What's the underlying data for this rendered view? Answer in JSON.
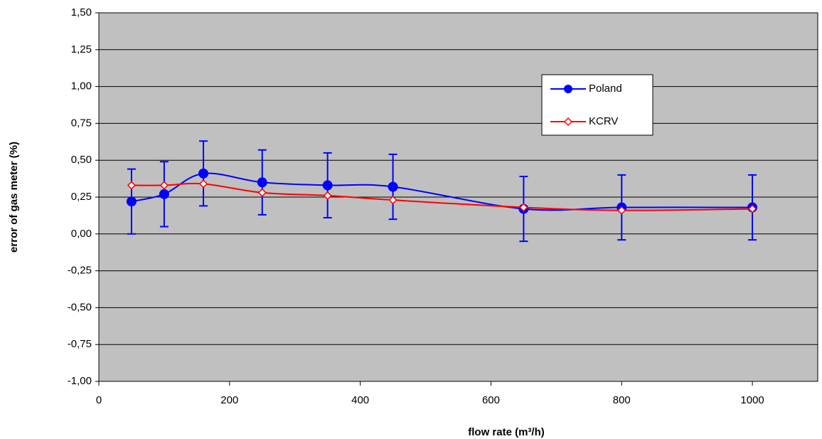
{
  "chart_data": {
    "type": "line",
    "x_label": "flow rate (m³/h)",
    "y_label": "error of gas meter (%)",
    "xlim": [
      0,
      1100
    ],
    "xticks": [
      0,
      200,
      400,
      600,
      800,
      1000
    ],
    "ylim": [
      -1,
      1.5
    ],
    "yticks": [
      {
        "value": -1,
        "label": "-1,00"
      },
      {
        "value": -0.75,
        "label": "-0,75"
      },
      {
        "value": -0.5,
        "label": "-0,50"
      },
      {
        "value": -0.25,
        "label": "-0,25"
      },
      {
        "value": 0,
        "label": "0,00"
      },
      {
        "value": 0.25,
        "label": "0,25"
      },
      {
        "value": 0.5,
        "label": "0,50"
      },
      {
        "value": 0.75,
        "label": "0,75"
      },
      {
        "value": 1,
        "label": "1,00"
      },
      {
        "value": 1.25,
        "label": "1,25"
      },
      {
        "value": 1.5,
        "label": "1,50"
      }
    ],
    "grid": true,
    "x": [
      50,
      100,
      160,
      250,
      350,
      450,
      650,
      800,
      1000
    ],
    "series": [
      {
        "name": "Poland",
        "color": "#0000ff",
        "marker": "circle",
        "values": [
          0.22,
          0.27,
          0.41,
          0.35,
          0.33,
          0.32,
          0.17,
          0.18,
          0.18
        ],
        "errors": [
          0.22,
          0.22,
          0.22,
          0.22,
          0.22,
          0.22,
          0.22,
          0.22,
          0.22
        ]
      },
      {
        "name": "KCRV",
        "color": "#ff0000",
        "marker": "diamond",
        "values": [
          0.33,
          0.33,
          0.34,
          0.28,
          0.26,
          0.23,
          0.18,
          0.16,
          0.17
        ]
      }
    ]
  }
}
